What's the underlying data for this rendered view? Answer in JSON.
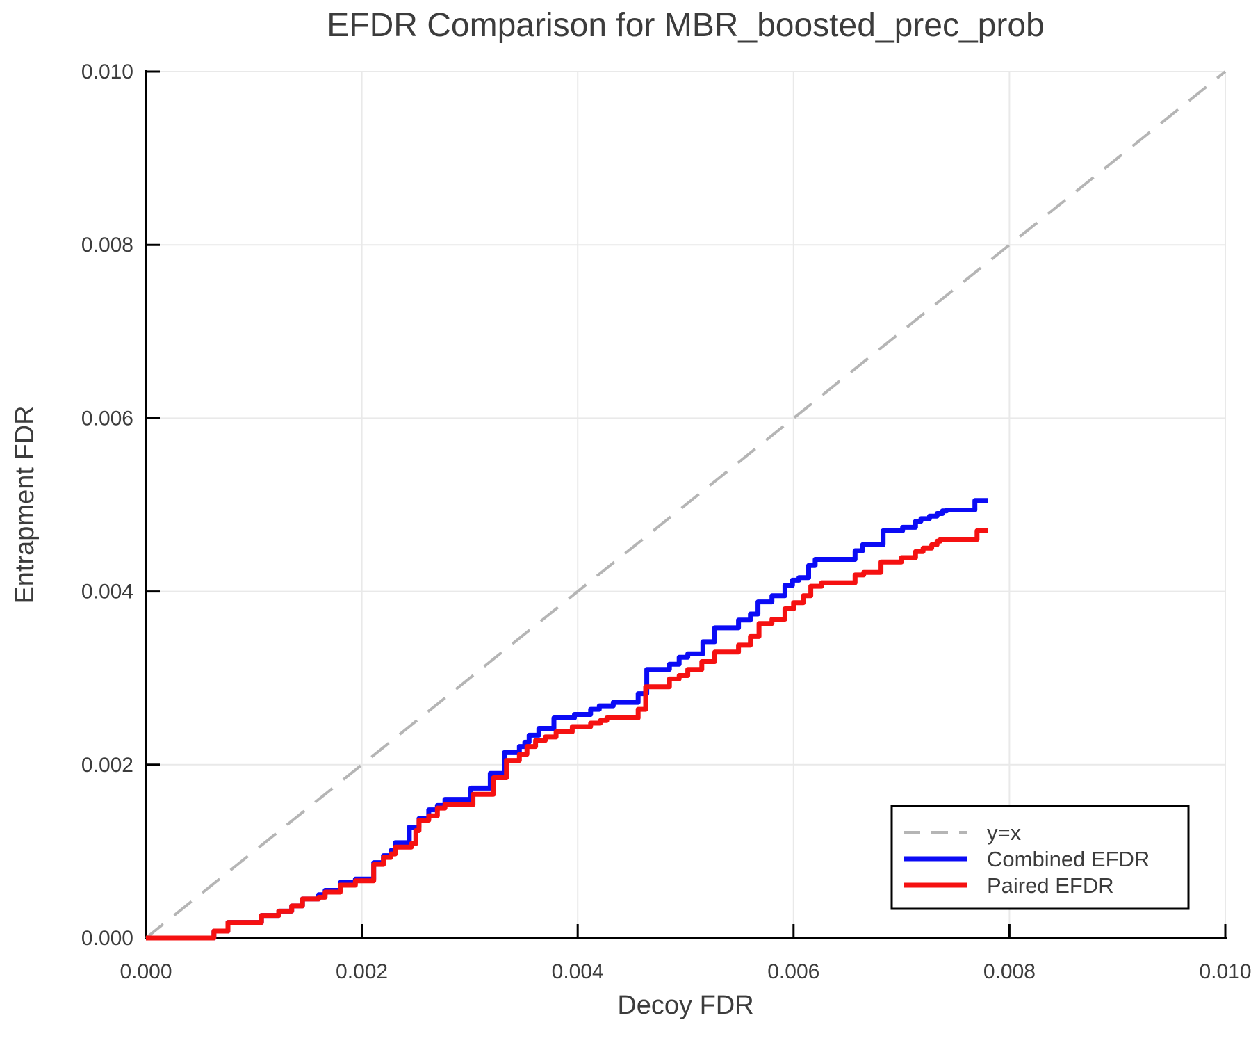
{
  "chart_data": {
    "type": "line",
    "title": "EFDR Comparison for MBR_boosted_prec_prob",
    "xlabel": "Decoy FDR",
    "ylabel": "Entrapment FDR",
    "xlim": [
      0.0,
      0.01
    ],
    "ylim": [
      0.0,
      0.01
    ],
    "x_ticks": [
      0.0,
      0.002,
      0.004,
      0.006,
      0.008,
      0.01
    ],
    "y_ticks": [
      0.0,
      0.002,
      0.004,
      0.006,
      0.008,
      0.01
    ],
    "x_tick_labels": [
      "0.000",
      "0.002",
      "0.004",
      "0.006",
      "0.008",
      "0.010"
    ],
    "y_tick_labels": [
      "0.000",
      "0.002",
      "0.004",
      "0.006",
      "0.008",
      "0.010"
    ],
    "grid": true,
    "legend_position": "lower right",
    "series": [
      {
        "name": "y=x",
        "style": "dashed",
        "step": false,
        "color": "#b5b5b5",
        "points": [
          [
            0.0,
            0.0
          ],
          [
            0.01,
            0.01
          ]
        ]
      },
      {
        "name": "Combined EFDR",
        "style": "solid",
        "step": "post",
        "color": "#0b0bf5",
        "points": [
          [
            0.0,
            0.0
          ],
          [
            0.00063,
            8e-05
          ],
          [
            0.00076,
            0.00018
          ],
          [
            0.00107,
            0.00026
          ],
          [
            0.00123,
            0.00031
          ],
          [
            0.00135,
            0.00037
          ],
          [
            0.00145,
            0.00045
          ],
          [
            0.0016,
            0.0005
          ],
          [
            0.00166,
            0.00055
          ],
          [
            0.0018,
            0.00064
          ],
          [
            0.00194,
            0.00068
          ],
          [
            0.00211,
            0.00087
          ],
          [
            0.0022,
            0.00095
          ],
          [
            0.00227,
            0.00101
          ],
          [
            0.00231,
            0.0011
          ],
          [
            0.00244,
            0.00128
          ],
          [
            0.00253,
            0.00138
          ],
          [
            0.00262,
            0.00148
          ],
          [
            0.0027,
            0.00153
          ],
          [
            0.00277,
            0.0016
          ],
          [
            0.00301,
            0.00173
          ],
          [
            0.00319,
            0.0019
          ],
          [
            0.00332,
            0.00214
          ],
          [
            0.00346,
            0.00221
          ],
          [
            0.00351,
            0.00226
          ],
          [
            0.00355,
            0.00234
          ],
          [
            0.00364,
            0.00242
          ],
          [
            0.00378,
            0.00254
          ],
          [
            0.00397,
            0.00258
          ],
          [
            0.00412,
            0.00264
          ],
          [
            0.0042,
            0.00268
          ],
          [
            0.00433,
            0.00272
          ],
          [
            0.00456,
            0.00282
          ],
          [
            0.00464,
            0.0031
          ],
          [
            0.00485,
            0.00316
          ],
          [
            0.00494,
            0.00324
          ],
          [
            0.00502,
            0.00328
          ],
          [
            0.00516,
            0.00342
          ],
          [
            0.00527,
            0.00358
          ],
          [
            0.00549,
            0.00367
          ],
          [
            0.0056,
            0.00374
          ],
          [
            0.00567,
            0.00388
          ],
          [
            0.0058,
            0.00395
          ],
          [
            0.00592,
            0.00407
          ],
          [
            0.00599,
            0.00413
          ],
          [
            0.00605,
            0.00416
          ],
          [
            0.00614,
            0.0043
          ],
          [
            0.0062,
            0.00437
          ],
          [
            0.00657,
            0.00447
          ],
          [
            0.00664,
            0.00454
          ],
          [
            0.00683,
            0.0047
          ],
          [
            0.00701,
            0.00474
          ],
          [
            0.00713,
            0.00481
          ],
          [
            0.00718,
            0.00484
          ],
          [
            0.00726,
            0.00487
          ],
          [
            0.00733,
            0.0049
          ],
          [
            0.00738,
            0.00493
          ],
          [
            0.00742,
            0.00494
          ],
          [
            0.00768,
            0.00505
          ],
          [
            0.0078,
            0.00505
          ]
        ]
      },
      {
        "name": "Paired EFDR",
        "style": "solid",
        "step": "post",
        "color": "#f51111",
        "points": [
          [
            0.0,
            0.0
          ],
          [
            0.00063,
            8e-05
          ],
          [
            0.00076,
            0.00018
          ],
          [
            0.00107,
            0.00026
          ],
          [
            0.00123,
            0.00031
          ],
          [
            0.00135,
            0.00037
          ],
          [
            0.00145,
            0.00045
          ],
          [
            0.0016,
            0.00047
          ],
          [
            0.00166,
            0.00053
          ],
          [
            0.0018,
            0.00061
          ],
          [
            0.00194,
            0.00066
          ],
          [
            0.00211,
            0.00085
          ],
          [
            0.0022,
            0.00093
          ],
          [
            0.00227,
            0.00097
          ],
          [
            0.00231,
            0.00105
          ],
          [
            0.00246,
            0.00109
          ],
          [
            0.0025,
            0.00124
          ],
          [
            0.00253,
            0.00136
          ],
          [
            0.00262,
            0.00141
          ],
          [
            0.0027,
            0.0015
          ],
          [
            0.00277,
            0.00154
          ],
          [
            0.00303,
            0.00166
          ],
          [
            0.00322,
            0.00185
          ],
          [
            0.00334,
            0.00205
          ],
          [
            0.00346,
            0.00212
          ],
          [
            0.00353,
            0.00221
          ],
          [
            0.00361,
            0.00228
          ],
          [
            0.0037,
            0.00232
          ],
          [
            0.0038,
            0.00238
          ],
          [
            0.00395,
            0.00244
          ],
          [
            0.00412,
            0.00248
          ],
          [
            0.00421,
            0.00251
          ],
          [
            0.00427,
            0.00254
          ],
          [
            0.00456,
            0.00264
          ],
          [
            0.00463,
            0.0029
          ],
          [
            0.00485,
            0.00299
          ],
          [
            0.00494,
            0.00303
          ],
          [
            0.00502,
            0.0031
          ],
          [
            0.00515,
            0.00319
          ],
          [
            0.00527,
            0.0033
          ],
          [
            0.00549,
            0.00338
          ],
          [
            0.0056,
            0.00348
          ],
          [
            0.00568,
            0.00363
          ],
          [
            0.0058,
            0.00368
          ],
          [
            0.00592,
            0.0038
          ],
          [
            0.006,
            0.00387
          ],
          [
            0.00609,
            0.00395
          ],
          [
            0.00616,
            0.00406
          ],
          [
            0.00626,
            0.0041
          ],
          [
            0.00657,
            0.00419
          ],
          [
            0.00665,
            0.00422
          ],
          [
            0.00681,
            0.00434
          ],
          [
            0.007,
            0.00439
          ],
          [
            0.00713,
            0.00446
          ],
          [
            0.0072,
            0.0045
          ],
          [
            0.00728,
            0.00454
          ],
          [
            0.00733,
            0.00458
          ],
          [
            0.00736,
            0.0046
          ],
          [
            0.0077,
            0.0047
          ],
          [
            0.0078,
            0.0047
          ]
        ]
      }
    ],
    "colors": {
      "grid": "#e9e9e9",
      "spine": "#000000",
      "text": "#3c3c3c",
      "background": "#ffffff",
      "identity_line": "#b5b5b5",
      "combined": "#0b0bf5",
      "paired": "#f51111"
    }
  }
}
